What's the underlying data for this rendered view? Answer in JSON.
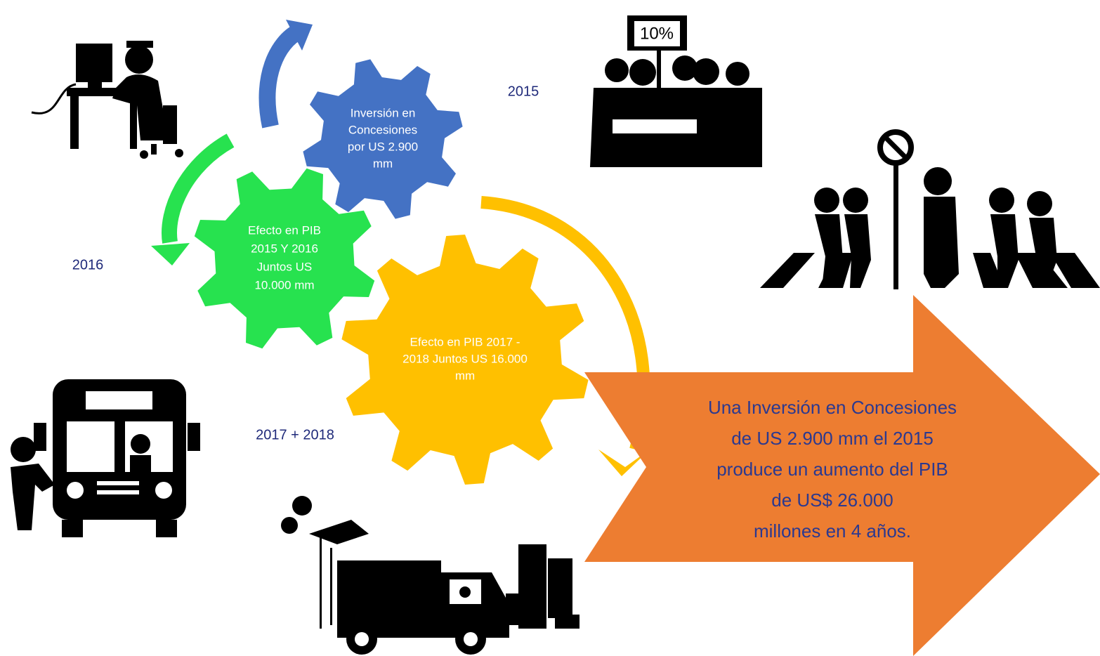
{
  "gears": [
    {
      "lines": [
        "Inversión en",
        "Concesiones",
        "por US 2.900",
        "mm"
      ]
    },
    {
      "lines": [
        "Efecto en PIB",
        "2015 Y 2016",
        "Juntos US",
        "10.000 mm"
      ]
    },
    {
      "lines": [
        "Efecto en PIB 2017 -",
        "2018 Juntos US 16.000",
        "mm"
      ]
    }
  ],
  "years": [
    "2015",
    "2016",
    "2017 + 2018"
  ],
  "sign": "10%",
  "arrow": {
    "lines": [
      "Una Inversión en Concesiones",
      "de US 2.900 mm el 2015",
      "produce un aumento del PIB",
      "de US$ 26.000",
      "millones en 4 años."
    ]
  }
}
